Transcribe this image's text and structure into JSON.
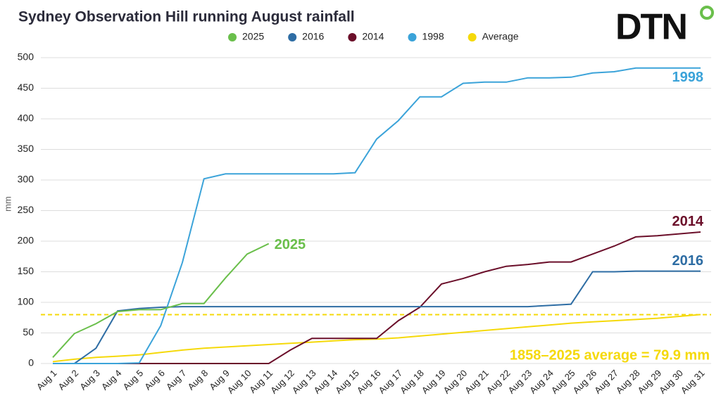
{
  "chart_data": {
    "type": "line",
    "title": "Sydney Observation Hill running August rainfall",
    "logo": "DTN",
    "y_label": "mm",
    "annotation": "1858–2025 average = 79.9 mm",
    "reference_value": 79.9,
    "categories": [
      "Aug 1",
      "Aug 2",
      "Aug 3",
      "Aug 4",
      "Aug 5",
      "Aug 6",
      "Aug 7",
      "Aug 8",
      "Aug 9",
      "Aug 10",
      "Aug 11",
      "Aug 12",
      "Aug 13",
      "Aug 14",
      "Aug 15",
      "Aug 16",
      "Aug 17",
      "Aug 18",
      "Aug 19",
      "Aug 20",
      "Aug 21",
      "Aug 22",
      "Aug 23",
      "Aug 24",
      "Aug 25",
      "Aug 26",
      "Aug 27",
      "Aug 28",
      "Aug 29",
      "Aug 30",
      "Aug 31"
    ],
    "series": [
      {
        "name": "2025",
        "color": "#6abf4b",
        "values": [
          10,
          49,
          65,
          85,
          88,
          88,
          98,
          98,
          140,
          179,
          196,
          null,
          null,
          null,
          null,
          null,
          null,
          null,
          null,
          null,
          null,
          null,
          null,
          null,
          null,
          null,
          null,
          null,
          null,
          null,
          null
        ]
      },
      {
        "name": "2016",
        "color": "#2e6da4",
        "values": [
          0,
          0,
          25,
          86,
          90,
          92,
          93,
          93,
          93,
          93,
          93,
          93,
          93,
          93,
          93,
          93,
          93,
          93,
          93,
          93,
          93,
          93,
          93,
          95,
          97,
          150,
          150,
          151,
          151,
          151,
          151
        ]
      },
      {
        "name": "2014",
        "color": "#6b0f2a",
        "values": [
          0,
          0,
          0,
          0,
          0,
          0,
          0,
          0,
          0,
          0,
          0,
          22,
          41,
          41,
          41,
          41,
          70,
          92,
          130,
          139,
          150,
          159,
          162,
          166,
          166,
          179,
          192,
          207,
          209,
          212,
          215
        ]
      },
      {
        "name": "1998",
        "color": "#3ba3d9",
        "values": [
          0,
          0,
          0,
          0,
          1,
          62,
          165,
          302,
          310,
          310,
          310,
          310,
          310,
          310,
          312,
          367,
          397,
          436,
          436,
          458,
          460,
          460,
          467,
          467,
          468,
          475,
          477,
          483,
          483,
          483,
          483
        ]
      },
      {
        "name": "Average",
        "color": "#f5d90a",
        "values": [
          3,
          7,
          10,
          12,
          14,
          18,
          22,
          25,
          27,
          29,
          31,
          33,
          35,
          37,
          39,
          40,
          42,
          45,
          48,
          51,
          54,
          57,
          60,
          63,
          66,
          68,
          70,
          72,
          74,
          77,
          80
        ]
      }
    ],
    "end_labels": [
      0,
      1,
      2,
      3
    ],
    "ylim": [
      0,
      500
    ],
    "yticks": [
      0,
      50,
      100,
      150,
      200,
      250,
      300,
      350,
      400,
      450,
      500
    ],
    "grid": true
  }
}
